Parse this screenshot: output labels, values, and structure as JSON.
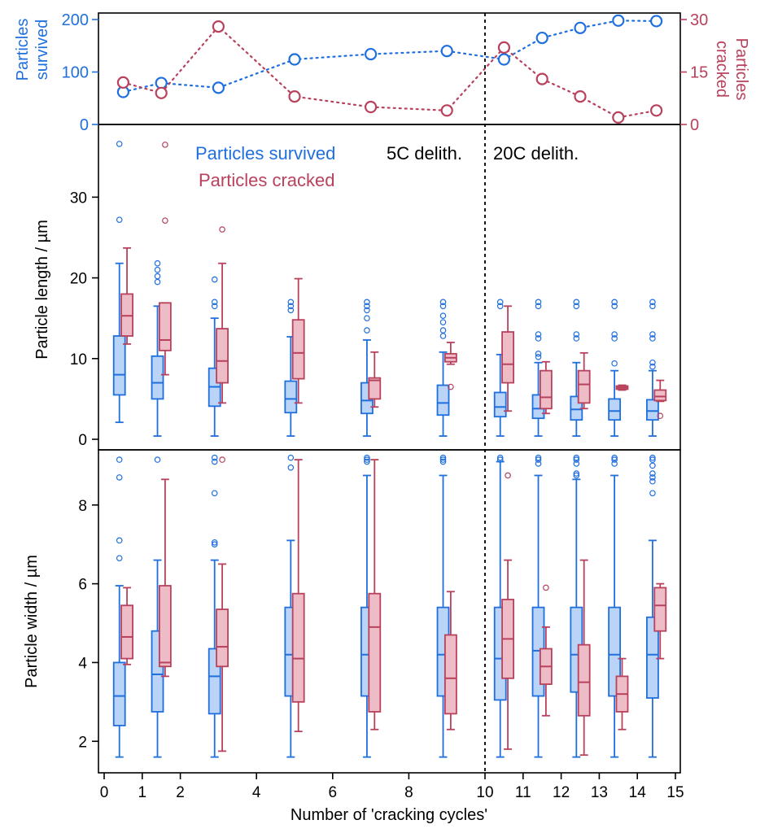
{
  "colors": {
    "survived": "#1f6fde",
    "cracked": "#b8415c",
    "survived_fill": "#b9d4f7",
    "cracked_fill": "#eebcc6",
    "axis": "#000000"
  },
  "x_axis": {
    "title": "Number of 'cracking cycles'",
    "ticks": [
      {
        "pos": 0,
        "label": "0"
      },
      {
        "pos": 1,
        "label": "1"
      },
      {
        "pos": 2,
        "label": "2"
      },
      {
        "pos": 4,
        "label": "4"
      },
      {
        "pos": 6,
        "label": "6"
      },
      {
        "pos": 8,
        "label": "8"
      },
      {
        "pos": 10,
        "label": "10"
      },
      {
        "pos": 11,
        "label": "11"
      },
      {
        "pos": 12,
        "label": "12"
      },
      {
        "pos": 13,
        "label": "13"
      },
      {
        "pos": 14,
        "label": "14"
      },
      {
        "pos": 15,
        "label": "15"
      }
    ]
  },
  "chart_data": [
    {
      "type": "line",
      "id": "counts",
      "ylabel_left": [
        "Particles",
        "survived"
      ],
      "ylabel_right": [
        "Particles",
        "cracked"
      ],
      "ylim_left": [
        0,
        200
      ],
      "yticks_left": [
        0,
        100,
        200
      ],
      "ylim_right": [
        0,
        30
      ],
      "yticks_right": [
        0,
        15,
        30
      ],
      "series": [
        {
          "name": "Particles survived",
          "axis": "left",
          "style": "dotted-circles",
          "x": [
            0.5,
            1.5,
            3,
            5,
            7,
            9,
            10.5,
            11.5,
            12.5,
            13.5,
            14.5
          ],
          "y": [
            62,
            79,
            70,
            124,
            134,
            140,
            124,
            165,
            184,
            198,
            197
          ]
        },
        {
          "name": "Particles cracked",
          "axis": "right",
          "style": "dotted-circles",
          "x": [
            0.5,
            1.5,
            3,
            5,
            7,
            9,
            10.5,
            11.5,
            12.5,
            13.5,
            14.5
          ],
          "y": [
            12,
            9,
            28,
            8,
            5,
            4,
            22,
            13,
            8,
            2,
            4
          ]
        }
      ]
    },
    {
      "type": "box",
      "id": "length",
      "ylabel": "Particle length / µm",
      "ylim": [
        0,
        38
      ],
      "yticks": [
        0,
        10,
        20,
        30
      ],
      "legend": {
        "survived": "Particles survived",
        "cracked": "Particles cracked"
      },
      "annotations": {
        "left": "5C delith.",
        "right": "20C delith."
      },
      "series": [
        {
          "name": "Particles survived",
          "boxes": [
            {
              "x": 0.4,
              "min": 2.1,
              "q1": 5.5,
              "median": 8.0,
              "q3": 12.8,
              "max": 21.8,
              "outliers": [
                27.2,
                36.6
              ]
            },
            {
              "x": 1.4,
              "min": 0.4,
              "q1": 5.0,
              "median": 7.0,
              "q3": 10.3,
              "max": 16.5,
              "outliers": [
                19.5,
                20.2,
                21.0,
                21.8
              ]
            },
            {
              "x": 2.9,
              "min": 0.4,
              "q1": 4.1,
              "median": 6.5,
              "q3": 8.8,
              "max": 15.0,
              "outliers": [
                16.5,
                17.0,
                19.8
              ]
            },
            {
              "x": 4.9,
              "min": 0.4,
              "q1": 3.3,
              "median": 5.0,
              "q3": 7.2,
              "max": 12.7,
              "outliers": [
                16.0,
                16.5,
                17.0
              ]
            },
            {
              "x": 6.9,
              "min": 0.4,
              "q1": 3.2,
              "median": 4.8,
              "q3": 7.0,
              "max": 12.3,
              "outliers": [
                13.5,
                15.0,
                16.0,
                16.5,
                17.0
              ]
            },
            {
              "x": 8.9,
              "min": 0.4,
              "q1": 3.0,
              "median": 4.5,
              "q3": 6.7,
              "max": 10.8,
              "outliers": [
                12.8,
                13.5,
                14.5,
                15.3,
                16.5,
                17.0
              ]
            },
            {
              "x": 10.4,
              "min": 0.4,
              "q1": 2.8,
              "median": 4.0,
              "q3": 5.8,
              "max": 10.5,
              "outliers": [
                16.5,
                17.0
              ]
            },
            {
              "x": 11.4,
              "min": 0.4,
              "q1": 2.6,
              "median": 3.8,
              "q3": 5.5,
              "max": 9.5,
              "outliers": [
                10.2,
                10.6,
                12.5,
                13.0,
                16.5,
                17.0
              ]
            },
            {
              "x": 12.4,
              "min": 0.4,
              "q1": 2.4,
              "median": 3.7,
              "q3": 5.3,
              "max": 9.5,
              "outliers": [
                12.5,
                13.0,
                16.5,
                17.0
              ]
            },
            {
              "x": 13.4,
              "min": 0.4,
              "q1": 2.4,
              "median": 3.5,
              "q3": 5.0,
              "max": 8.5,
              "outliers": [
                9.4,
                12.5,
                13.0,
                16.5,
                17.0
              ]
            },
            {
              "x": 14.4,
              "min": 0.4,
              "q1": 2.4,
              "median": 3.5,
              "q3": 4.9,
              "max": 8.5,
              "outliers": [
                9.0,
                9.5,
                12.5,
                13.0,
                16.5,
                17.0
              ]
            }
          ]
        },
        {
          "name": "Particles cracked",
          "boxes": [
            {
              "x": 0.6,
              "min": 11.8,
              "q1": 12.8,
              "median": 15.3,
              "q3": 18.0,
              "max": 23.7,
              "outliers": []
            },
            {
              "x": 1.6,
              "min": 8.0,
              "q1": 11.0,
              "median": 12.3,
              "q3": 16.9,
              "max": 16.9,
              "outliers": [
                27.1,
                36.5
              ]
            },
            {
              "x": 3.1,
              "min": 4.5,
              "q1": 7.0,
              "median": 9.7,
              "q3": 13.7,
              "max": 21.8,
              "outliers": [
                26.0
              ]
            },
            {
              "x": 5.1,
              "min": 4.5,
              "q1": 7.5,
              "median": 10.7,
              "q3": 14.8,
              "max": 19.9,
              "outliers": []
            },
            {
              "x": 7.1,
              "min": 4.0,
              "q1": 5.0,
              "median": 7.3,
              "q3": 7.6,
              "max": 10.8,
              "outliers": []
            },
            {
              "x": 9.1,
              "min": 9.3,
              "q1": 9.6,
              "median": 10.1,
              "q3": 10.6,
              "max": 12.0,
              "outliers": [
                6.5
              ]
            },
            {
              "x": 10.6,
              "min": 3.5,
              "q1": 7.0,
              "median": 9.3,
              "q3": 13.3,
              "max": 16.5,
              "outliers": []
            },
            {
              "x": 11.6,
              "min": 3.2,
              "q1": 3.8,
              "median": 5.2,
              "q3": 8.5,
              "max": 9.6,
              "outliers": []
            },
            {
              "x": 12.6,
              "min": 3.8,
              "q1": 4.5,
              "median": 6.8,
              "q3": 8.5,
              "max": 10.7,
              "outliers": []
            },
            {
              "x": 13.6,
              "min": 6.1,
              "q1": 6.2,
              "median": 6.4,
              "q3": 6.6,
              "max": 6.7,
              "outliers": []
            },
            {
              "x": 14.6,
              "min": 4.7,
              "q1": 4.8,
              "median": 5.3,
              "q3": 6.1,
              "max": 7.3,
              "outliers": [
                2.9
              ]
            }
          ]
        }
      ]
    },
    {
      "type": "box",
      "id": "width",
      "ylabel": "Particle width / µm",
      "ylim": [
        1.2,
        9.4
      ],
      "yticks": [
        2,
        4,
        6,
        8
      ],
      "series": [
        {
          "name": "Particles survived",
          "boxes": [
            {
              "x": 0.4,
              "min": 1.6,
              "q1": 2.4,
              "median": 3.15,
              "q3": 4.0,
              "max": 5.95,
              "outliers": [
                6.65,
                7.1,
                8.7,
                9.15
              ]
            },
            {
              "x": 1.4,
              "min": 1.6,
              "q1": 2.75,
              "median": 3.7,
              "q3": 4.8,
              "max": 6.6,
              "outliers": [
                9.15
              ]
            },
            {
              "x": 2.9,
              "min": 1.6,
              "q1": 2.7,
              "median": 3.65,
              "q3": 4.35,
              "max": 6.6,
              "outliers": [
                7.0,
                7.05,
                8.3,
                9.1,
                9.2
              ]
            },
            {
              "x": 4.9,
              "min": 1.6,
              "q1": 3.15,
              "median": 4.2,
              "q3": 5.4,
              "max": 7.1,
              "outliers": [
                8.95,
                9.2
              ]
            },
            {
              "x": 6.9,
              "min": 1.6,
              "q1": 3.15,
              "median": 4.2,
              "q3": 5.4,
              "max": 8.75,
              "outliers": [
                9.1,
                9.15,
                9.2
              ]
            },
            {
              "x": 8.9,
              "min": 1.6,
              "q1": 3.15,
              "median": 4.2,
              "q3": 5.4,
              "max": 8.75,
              "outliers": [
                9.1,
                9.15,
                9.2
              ]
            },
            {
              "x": 10.4,
              "min": 1.6,
              "q1": 3.05,
              "median": 4.1,
              "q3": 5.4,
              "max": 9.1,
              "outliers": [
                9.15,
                9.2
              ]
            },
            {
              "x": 11.4,
              "min": 1.6,
              "q1": 3.15,
              "median": 4.3,
              "q3": 5.4,
              "max": 8.75,
              "outliers": [
                9.05,
                9.15,
                9.2
              ]
            },
            {
              "x": 12.4,
              "min": 1.6,
              "q1": 3.25,
              "median": 4.2,
              "q3": 5.4,
              "max": 8.65,
              "outliers": [
                8.75,
                8.8,
                9.05,
                9.15,
                9.2
              ]
            },
            {
              "x": 13.4,
              "min": 1.6,
              "q1": 3.15,
              "median": 4.2,
              "q3": 5.4,
              "max": 8.75,
              "outliers": [
                9.05,
                9.15,
                9.2
              ]
            },
            {
              "x": 14.4,
              "min": 1.6,
              "q1": 3.1,
              "median": 4.2,
              "q3": 5.15,
              "max": 7.1,
              "outliers": [
                8.3,
                8.6,
                8.7,
                8.8,
                9.0,
                9.15,
                9.2
              ]
            }
          ]
        },
        {
          "name": "Particles cracked",
          "boxes": [
            {
              "x": 0.6,
              "min": 3.95,
              "q1": 4.1,
              "median": 4.65,
              "q3": 5.45,
              "max": 5.9,
              "outliers": []
            },
            {
              "x": 1.6,
              "min": 3.65,
              "q1": 3.9,
              "median": 4.0,
              "q3": 5.95,
              "max": 8.65,
              "outliers": []
            },
            {
              "x": 3.1,
              "min": 1.75,
              "q1": 3.9,
              "median": 4.4,
              "q3": 5.35,
              "max": 6.5,
              "outliers": [
                9.15
              ]
            },
            {
              "x": 5.1,
              "min": 2.25,
              "q1": 3.0,
              "median": 4.1,
              "q3": 5.75,
              "max": 9.15,
              "outliers": []
            },
            {
              "x": 7.1,
              "min": 2.3,
              "q1": 2.75,
              "median": 4.9,
              "q3": 5.75,
              "max": 9.15,
              "outliers": []
            },
            {
              "x": 9.1,
              "min": 2.3,
              "q1": 2.7,
              "median": 3.6,
              "q3": 4.7,
              "max": 5.8,
              "outliers": []
            },
            {
              "x": 10.6,
              "min": 1.8,
              "q1": 3.6,
              "median": 4.6,
              "q3": 5.6,
              "max": 6.6,
              "outliers": [
                8.75
              ]
            },
            {
              "x": 11.6,
              "min": 2.65,
              "q1": 3.45,
              "median": 3.9,
              "q3": 4.35,
              "max": 4.9,
              "outliers": [
                5.9
              ]
            },
            {
              "x": 12.6,
              "min": 1.65,
              "q1": 2.65,
              "median": 3.5,
              "q3": 4.45,
              "max": 6.6,
              "outliers": []
            },
            {
              "x": 13.6,
              "min": 2.3,
              "q1": 2.75,
              "median": 3.2,
              "q3": 3.65,
              "max": 4.1,
              "outliers": []
            },
            {
              "x": 14.6,
              "min": 4.1,
              "q1": 4.8,
              "median": 5.45,
              "q3": 5.9,
              "max": 6.0,
              "outliers": []
            }
          ]
        }
      ]
    }
  ]
}
